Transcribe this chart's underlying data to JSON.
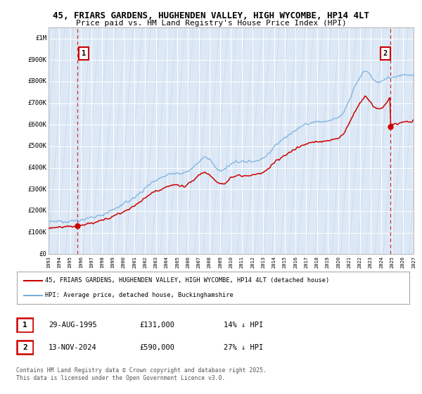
{
  "title_line1": "45, FRIARS GARDENS, HUGHENDEN VALLEY, HIGH WYCOMBE, HP14 4LT",
  "title_line2": "Price paid vs. HM Land Registry's House Price Index (HPI)",
  "background_color": "#ffffff",
  "plot_bg_color": "#dce8f5",
  "grid_color": "#ffffff",
  "hpi_color": "#7ab0e0",
  "price_color": "#cc0000",
  "annotation_box_color": "#cc0000",
  "sale1": {
    "date_num": 1995.66,
    "price": 131000,
    "label": "1"
  },
  "sale2": {
    "date_num": 2024.87,
    "price": 590000,
    "label": "2"
  },
  "ylim": [
    0,
    1050000
  ],
  "xlim": [
    1993.0,
    2027.0
  ],
  "yticks": [
    0,
    100000,
    200000,
    300000,
    400000,
    500000,
    600000,
    700000,
    800000,
    900000,
    1000000
  ],
  "ytick_labels": [
    "£0",
    "£100K",
    "£200K",
    "£300K",
    "£400K",
    "£500K",
    "£600K",
    "£700K",
    "£800K",
    "£900K",
    "£1M"
  ],
  "xticks": [
    1993,
    1994,
    1995,
    1996,
    1997,
    1998,
    1999,
    2000,
    2001,
    2002,
    2003,
    2004,
    2005,
    2006,
    2007,
    2008,
    2009,
    2010,
    2011,
    2012,
    2013,
    2014,
    2015,
    2016,
    2017,
    2018,
    2019,
    2020,
    2021,
    2022,
    2023,
    2024,
    2025,
    2026,
    2027
  ],
  "legend_line1": "45, FRIARS GARDENS, HUGHENDEN VALLEY, HIGH WYCOMBE, HP14 4LT (detached house)",
  "legend_line2": "HPI: Average price, detached house, Buckinghamshire",
  "footer_line1": "Contains HM Land Registry data © Crown copyright and database right 2025.",
  "footer_line2": "This data is licensed under the Open Government Licence v3.0.",
  "table_row1": [
    "1",
    "29-AUG-1995",
    "£131,000",
    "14% ↓ HPI"
  ],
  "table_row2": [
    "2",
    "13-NOV-2024",
    "£590,000",
    "27% ↓ HPI"
  ]
}
